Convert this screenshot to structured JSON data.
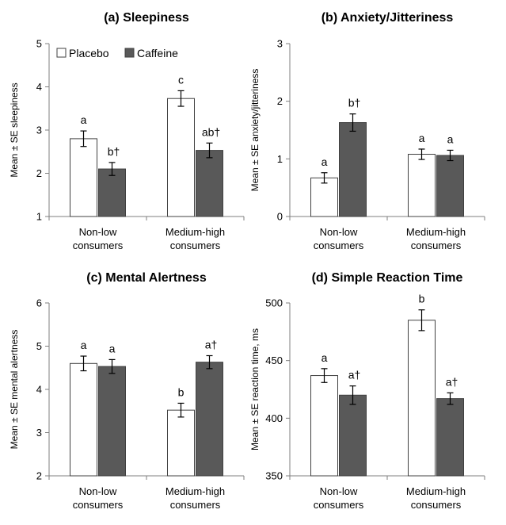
{
  "chart_data": [
    {
      "type": "bar",
      "title": "(a) Sleepiness",
      "ylabel": "Mean ± SE sleepiness",
      "ylim": [
        1,
        5
      ],
      "yticks": [
        "1",
        "2",
        "3",
        "4",
        "5"
      ],
      "categories": [
        [
          "Non-low",
          "consumers"
        ],
        [
          "Medium-high",
          "consumers"
        ]
      ],
      "series": [
        {
          "name": "Placebo",
          "color": "#ffffff",
          "values": [
            2.8,
            3.73
          ],
          "se": [
            0.18,
            0.18
          ],
          "labels": [
            "a",
            "c"
          ]
        },
        {
          "name": "Caffeine",
          "color": "#595959",
          "values": [
            2.1,
            2.53
          ],
          "se": [
            0.15,
            0.17
          ],
          "labels": [
            "b†",
            "ab†"
          ]
        }
      ],
      "legend": "top-left",
      "grid": false
    },
    {
      "type": "bar",
      "title": "(b) Anxiety/Jitteriness",
      "ylabel": "Mean ± SE anxiety/jitteriness",
      "ylim": [
        0,
        3
      ],
      "yticks": [
        "0",
        "1",
        "2",
        "3"
      ],
      "categories": [
        [
          "Non-low",
          "consumers"
        ],
        [
          "Medium-high",
          "consumers"
        ]
      ],
      "series": [
        {
          "name": "Placebo",
          "color": "#ffffff",
          "values": [
            0.67,
            1.08
          ],
          "se": [
            0.09,
            0.09
          ],
          "labels": [
            "a",
            "a"
          ]
        },
        {
          "name": "Caffeine",
          "color": "#595959",
          "values": [
            1.63,
            1.06
          ],
          "se": [
            0.15,
            0.09
          ],
          "labels": [
            "b†",
            "a"
          ]
        }
      ],
      "grid": false
    },
    {
      "type": "bar",
      "title": "(c) Mental Alertness",
      "ylabel": "Mean ± SE mental alertness",
      "ylim": [
        2,
        6
      ],
      "yticks": [
        "2",
        "3",
        "4",
        "5",
        "6"
      ],
      "categories": [
        [
          "Non-low",
          "consumers"
        ],
        [
          "Medium-high",
          "consumers"
        ]
      ],
      "series": [
        {
          "name": "Placebo",
          "color": "#ffffff",
          "values": [
            4.6,
            3.52
          ],
          "se": [
            0.17,
            0.16
          ],
          "labels": [
            "a",
            "b"
          ]
        },
        {
          "name": "Caffeine",
          "color": "#595959",
          "values": [
            4.53,
            4.63
          ],
          "se": [
            0.16,
            0.15
          ],
          "labels": [
            "a",
            "a†"
          ]
        }
      ],
      "grid": false
    },
    {
      "type": "bar",
      "title": "(d) Simple Reaction Time",
      "ylabel": "Mean ± SE reaction time, ms",
      "ylim": [
        350,
        500
      ],
      "yticks": [
        "350",
        "400",
        "450",
        "500"
      ],
      "categories": [
        [
          "Non-low",
          "consumers"
        ],
        [
          "Medium-high",
          "consumers"
        ]
      ],
      "series": [
        {
          "name": "Placebo",
          "color": "#ffffff",
          "values": [
            437,
            485
          ],
          "se": [
            6,
            9
          ],
          "labels": [
            "a",
            "b"
          ]
        },
        {
          "name": "Caffeine",
          "color": "#595959",
          "values": [
            420,
            417
          ],
          "se": [
            8,
            5
          ],
          "labels": [
            "a†",
            "a†"
          ]
        }
      ],
      "grid": false
    }
  ]
}
